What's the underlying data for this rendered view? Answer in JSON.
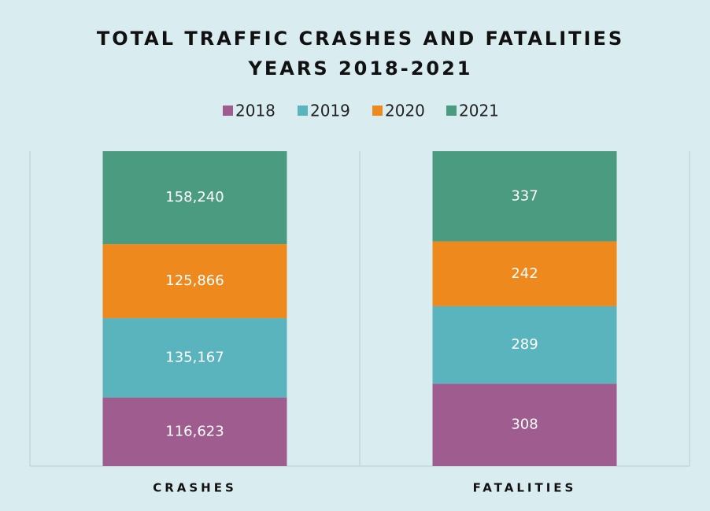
{
  "chart_data": {
    "type": "bar",
    "stacking": "percent",
    "title": [
      "TOTAL TRAFFIC CRASHES AND FATALITIES",
      "YEARS 2018-2021"
    ],
    "categories": [
      "CRASHES",
      "FATALITIES"
    ],
    "legend": "top",
    "series": [
      {
        "name": "2018",
        "color": "#9e5d8e",
        "values": [
          116623,
          308
        ],
        "value_labels": [
          "116,623",
          "308"
        ]
      },
      {
        "name": "2019",
        "color": "#5ab4bd",
        "values": [
          135167,
          289
        ],
        "value_labels": [
          "135,167",
          "289"
        ]
      },
      {
        "name": "2020",
        "color": "#ee891e",
        "values": [
          125866,
          242
        ],
        "value_labels": [
          "125,866",
          "242"
        ]
      },
      {
        "name": "2021",
        "color": "#4a9b80",
        "values": [
          158240,
          337
        ],
        "value_labels": [
          "158,240",
          "337"
        ]
      }
    ]
  }
}
